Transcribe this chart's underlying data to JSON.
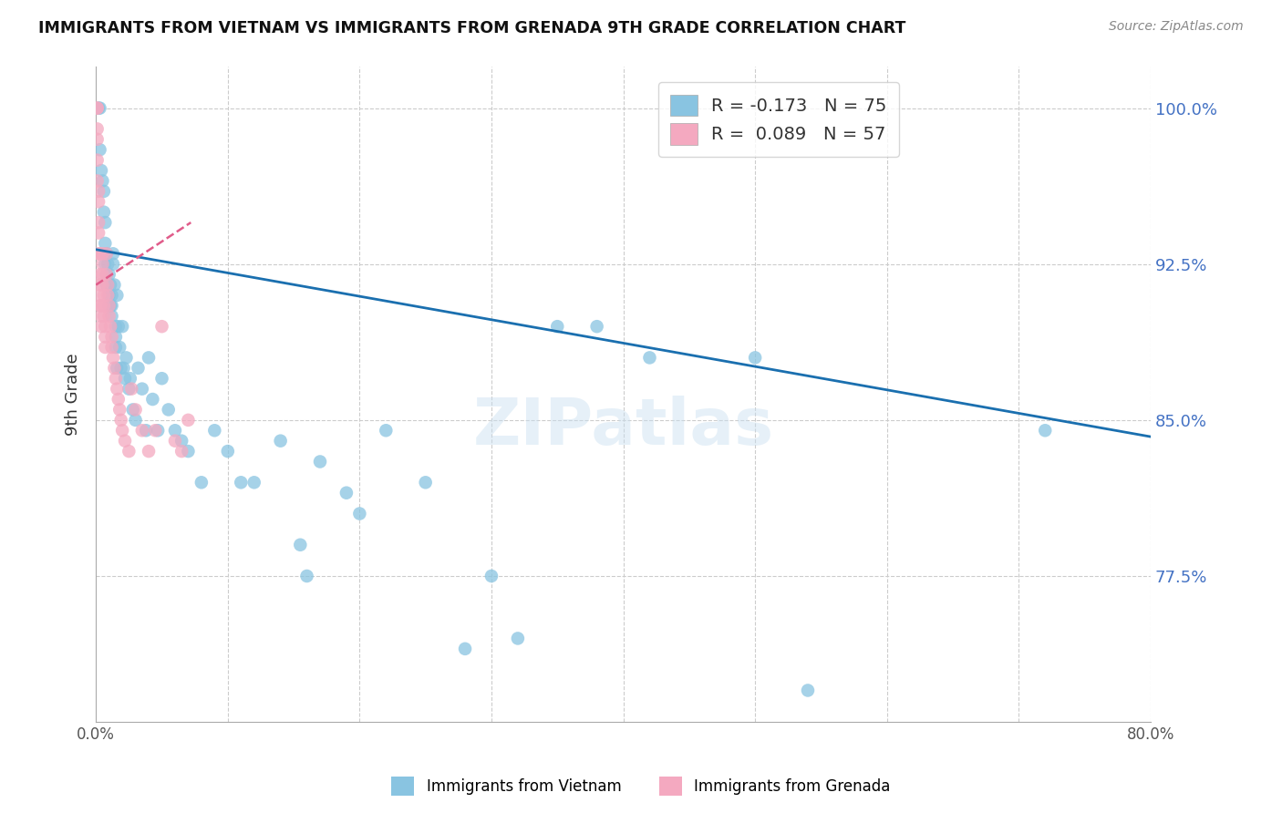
{
  "title": "IMMIGRANTS FROM VIETNAM VS IMMIGRANTS FROM GRENADA 9TH GRADE CORRELATION CHART",
  "source": "Source: ZipAtlas.com",
  "ylabel": "9th Grade",
  "xlim": [
    0.0,
    0.8
  ],
  "ylim": [
    0.705,
    1.02
  ],
  "xticks": [
    0.0,
    0.1,
    0.2,
    0.3,
    0.4,
    0.5,
    0.6,
    0.7,
    0.8
  ],
  "yticks": [
    0.775,
    0.85,
    0.925,
    1.0
  ],
  "yticklabels": [
    "77.5%",
    "85.0%",
    "92.5%",
    "100.0%"
  ],
  "blue_color": "#89c4e1",
  "pink_color": "#f4a9c0",
  "blue_line_color": "#1a6faf",
  "pink_line_color": "#e05c8a",
  "blue_line_x0": 0.0,
  "blue_line_y0": 0.932,
  "blue_line_x1": 0.8,
  "blue_line_y1": 0.842,
  "pink_line_x0": 0.0,
  "pink_line_y0": 0.915,
  "pink_line_x1": 0.072,
  "pink_line_y1": 0.945,
  "legend_blue_label": "R = -0.173   N = 75",
  "legend_pink_label": "R =  0.089   N = 57",
  "watermark": "ZIPatlas",
  "blue_x": [
    0.002,
    0.003,
    0.003,
    0.004,
    0.005,
    0.006,
    0.006,
    0.007,
    0.007,
    0.007,
    0.008,
    0.008,
    0.008,
    0.009,
    0.009,
    0.01,
    0.01,
    0.01,
    0.011,
    0.011,
    0.012,
    0.012,
    0.012,
    0.013,
    0.013,
    0.014,
    0.015,
    0.015,
    0.015,
    0.016,
    0.016,
    0.017,
    0.018,
    0.019,
    0.02,
    0.021,
    0.022,
    0.023,
    0.025,
    0.026,
    0.028,
    0.03,
    0.032,
    0.035,
    0.038,
    0.04,
    0.043,
    0.047,
    0.05,
    0.055,
    0.06,
    0.065,
    0.07,
    0.08,
    0.09,
    0.1,
    0.11,
    0.12,
    0.14,
    0.155,
    0.16,
    0.17,
    0.19,
    0.2,
    0.22,
    0.25,
    0.28,
    0.3,
    0.32,
    0.35,
    0.38,
    0.42,
    0.5,
    0.54,
    0.72
  ],
  "blue_y": [
    1.0,
    1.0,
    0.98,
    0.97,
    0.965,
    0.96,
    0.95,
    0.945,
    0.935,
    0.925,
    0.93,
    0.92,
    0.915,
    0.925,
    0.915,
    0.92,
    0.91,
    0.905,
    0.915,
    0.905,
    0.91,
    0.905,
    0.9,
    0.93,
    0.925,
    0.915,
    0.895,
    0.89,
    0.885,
    0.91,
    0.875,
    0.895,
    0.885,
    0.875,
    0.895,
    0.875,
    0.87,
    0.88,
    0.865,
    0.87,
    0.855,
    0.85,
    0.875,
    0.865,
    0.845,
    0.88,
    0.86,
    0.845,
    0.87,
    0.855,
    0.845,
    0.84,
    0.835,
    0.82,
    0.845,
    0.835,
    0.82,
    0.82,
    0.84,
    0.79,
    0.775,
    0.83,
    0.815,
    0.805,
    0.845,
    0.82,
    0.74,
    0.775,
    0.745,
    0.895,
    0.895,
    0.88,
    0.88,
    0.72,
    0.845
  ],
  "pink_x": [
    0.001,
    0.001,
    0.001,
    0.001,
    0.001,
    0.001,
    0.002,
    0.002,
    0.002,
    0.002,
    0.002,
    0.003,
    0.003,
    0.003,
    0.003,
    0.003,
    0.004,
    0.004,
    0.004,
    0.005,
    0.005,
    0.005,
    0.005,
    0.006,
    0.006,
    0.006,
    0.007,
    0.007,
    0.007,
    0.008,
    0.008,
    0.009,
    0.009,
    0.01,
    0.01,
    0.011,
    0.012,
    0.012,
    0.013,
    0.014,
    0.015,
    0.016,
    0.017,
    0.018,
    0.019,
    0.02,
    0.022,
    0.025,
    0.027,
    0.03,
    0.035,
    0.04,
    0.045,
    0.05,
    0.06,
    0.065,
    0.07
  ],
  "pink_y": [
    1.0,
    1.0,
    0.99,
    0.985,
    0.975,
    0.965,
    0.96,
    0.955,
    0.945,
    0.94,
    0.93,
    0.93,
    0.92,
    0.915,
    0.91,
    0.905,
    0.905,
    0.9,
    0.895,
    0.93,
    0.925,
    0.92,
    0.915,
    0.91,
    0.905,
    0.9,
    0.895,
    0.89,
    0.885,
    0.93,
    0.92,
    0.915,
    0.91,
    0.905,
    0.9,
    0.895,
    0.89,
    0.885,
    0.88,
    0.875,
    0.87,
    0.865,
    0.86,
    0.855,
    0.85,
    0.845,
    0.84,
    0.835,
    0.865,
    0.855,
    0.845,
    0.835,
    0.845,
    0.895,
    0.84,
    0.835,
    0.85
  ]
}
